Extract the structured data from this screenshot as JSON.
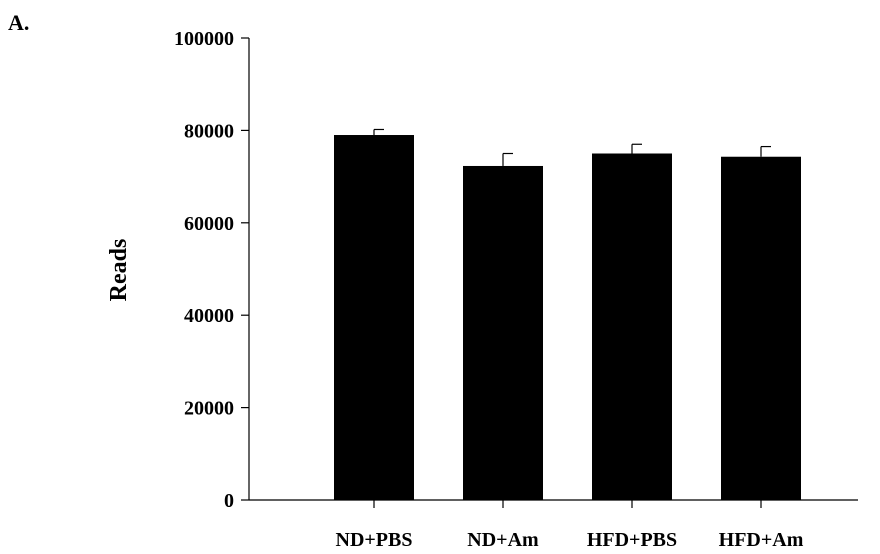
{
  "panel_label": "A.",
  "chart_data": {
    "type": "bar",
    "categories": [
      "ND+PBS",
      "ND+Am",
      "HFD+PBS",
      "HFD+Am"
    ],
    "values": [
      79000,
      72300,
      75000,
      74300
    ],
    "error_upper": [
      1200,
      2700,
      2000,
      2200
    ],
    "ylabel": "Reads",
    "xlabel": "",
    "ylim": [
      0,
      100000
    ],
    "yticks": [
      0,
      20000,
      40000,
      60000,
      80000,
      100000
    ],
    "bar_color": "#000000",
    "grid": false,
    "legend": "none"
  }
}
